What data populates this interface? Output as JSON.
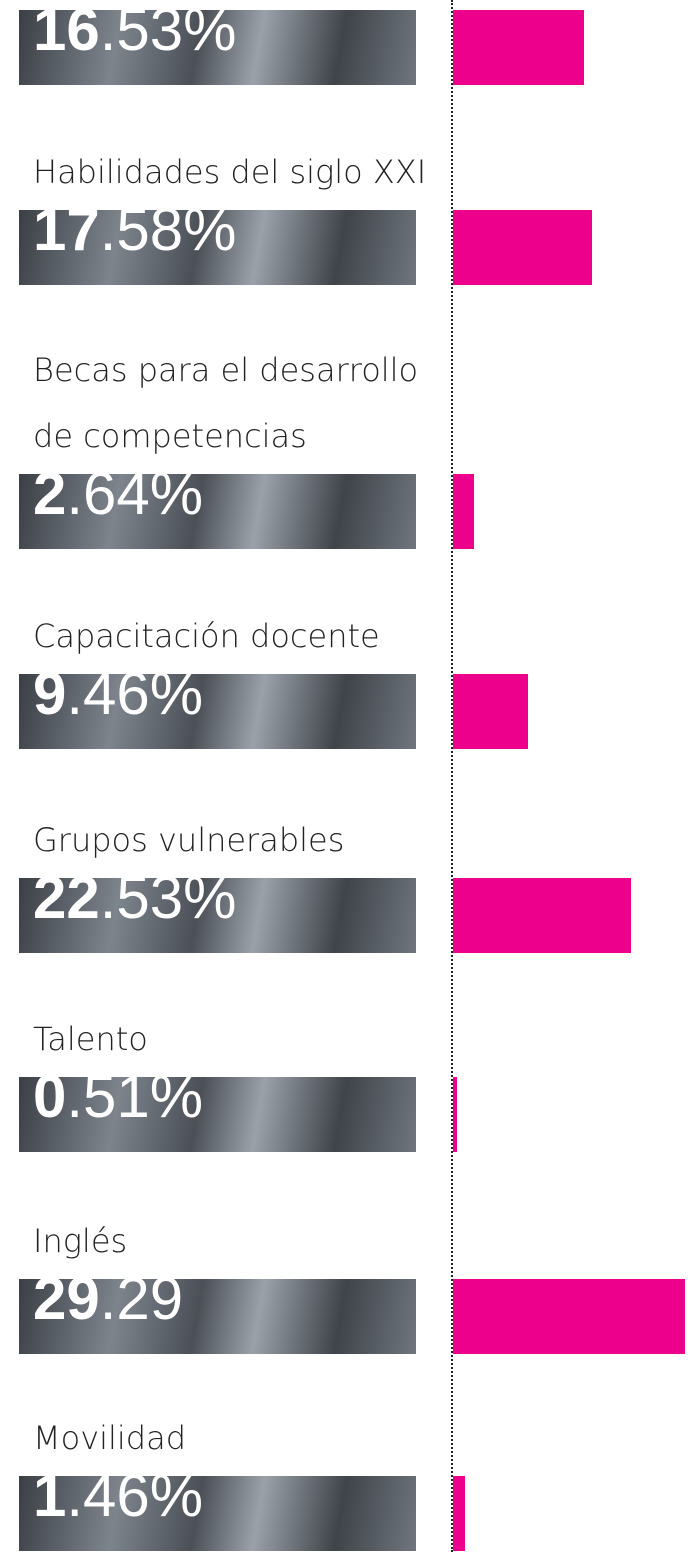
{
  "chart_data": {
    "type": "bar",
    "categories": [
      null,
      "Habilidades del siglo XXI",
      "Becas para el desarrollo de competencias",
      "Capacitación docente",
      "Grupos vulnerables",
      "Talento",
      "Inglés",
      "Movilidad"
    ],
    "values": [
      16.53,
      17.58,
      2.64,
      9.46,
      22.53,
      0.51,
      29.29,
      1.46
    ],
    "value_labels": [
      "16.53%",
      "17.58%",
      "2.64%",
      "9.46%",
      "22.53%",
      "0.51%",
      "29.29",
      "1.46%"
    ],
    "color": "#ec008c"
  }
}
